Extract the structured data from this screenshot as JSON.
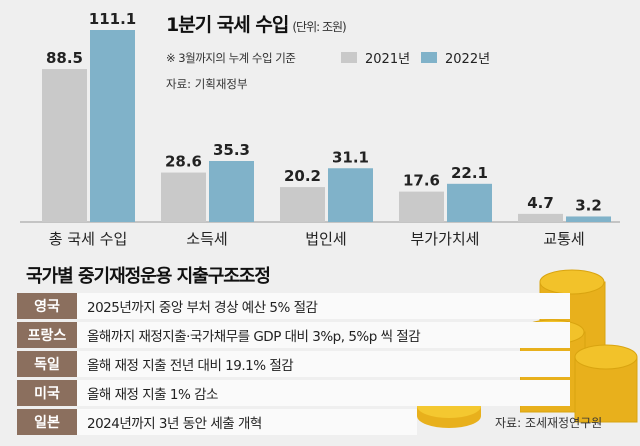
{
  "chart_data": {
    "type": "bar",
    "title": "1분기 국세 수입",
    "unit": "(단위: 조원)",
    "note": "※ 3월까지의 누계 수입 기준",
    "source": "자료: 기획재정부",
    "categories": [
      "총 국세 수입",
      "소득세",
      "법인세",
      "부가가치세",
      "교통세"
    ],
    "series": [
      {
        "name": "2021년",
        "color": "#c9c9c9",
        "values": [
          88.5,
          28.6,
          20.2,
          17.6,
          4.7
        ]
      },
      {
        "name": "2022년",
        "color": "#80b2c9",
        "values": [
          111.1,
          35.3,
          31.1,
          22.1,
          3.2
        ]
      }
    ],
    "ylim": [
      0,
      115
    ]
  },
  "table": {
    "title": "국가별 중기재정운용 지출구조조정",
    "rows": [
      {
        "country": "영국",
        "text": "2025년까지 중앙 부처 경상 예산 5% 절감"
      },
      {
        "country": "프랑스",
        "text": "올해까지 재정지출·국가채무를 GDP 대비 3%p, 5%p 씩 절감"
      },
      {
        "country": "독일",
        "text": "올해 재정 지출 전년 대비 19.1% 절감"
      },
      {
        "country": "미국",
        "text": "올해 재정 지출 1% 감소"
      },
      {
        "country": "일본",
        "text": "2024년까지 3년 동안 세출 개혁"
      }
    ],
    "source": "자료: 조세재정연구원"
  }
}
